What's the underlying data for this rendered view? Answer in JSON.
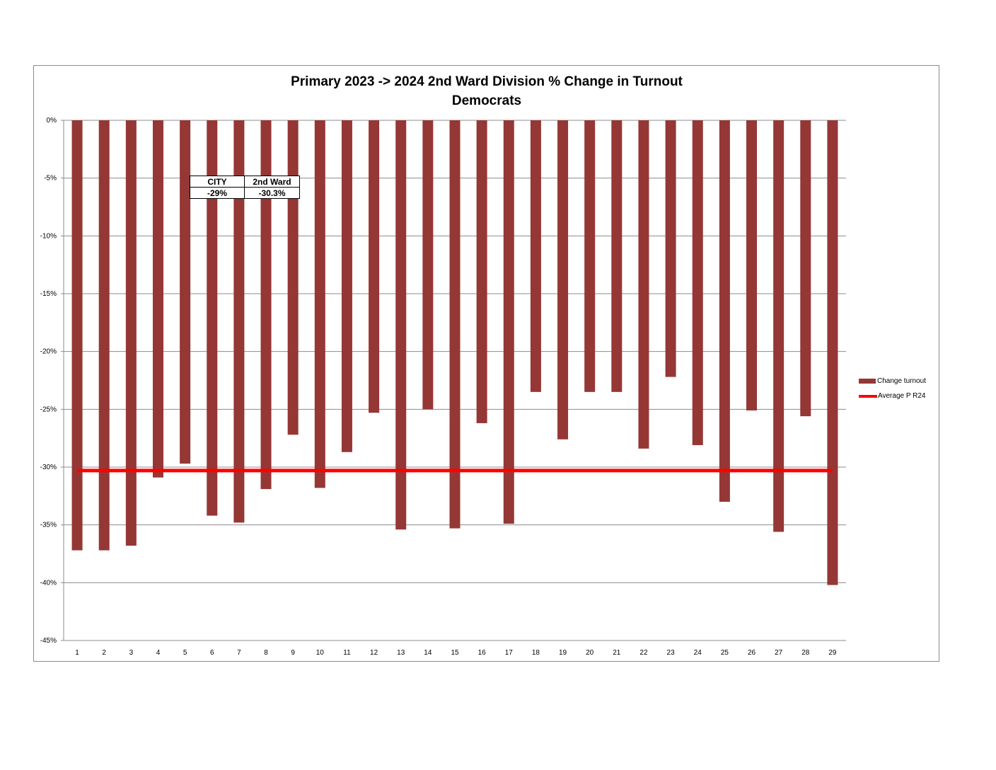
{
  "chart_data": {
    "type": "bar",
    "title": "Primary 2023 -> 2024 2nd Ward Division % Change in Turnout",
    "subtitle": "Democrats",
    "categories": [
      "1",
      "2",
      "3",
      "4",
      "5",
      "6",
      "7",
      "8",
      "9",
      "10",
      "11",
      "12",
      "13",
      "14",
      "15",
      "16",
      "17",
      "18",
      "19",
      "20",
      "21",
      "22",
      "23",
      "24",
      "25",
      "26",
      "27",
      "28",
      "29"
    ],
    "series": [
      {
        "name": "Change turnout",
        "type": "bar",
        "color": "#953735",
        "values": [
          -37.2,
          -37.2,
          -36.8,
          -30.9,
          -29.7,
          -34.2,
          -34.8,
          -31.9,
          -27.2,
          -31.8,
          -28.7,
          -25.3,
          -35.4,
          -25.0,
          -35.3,
          -26.2,
          -34.9,
          -23.5,
          -27.6,
          -23.5,
          -23.5,
          -28.4,
          -22.2,
          -28.1,
          -33.0,
          -25.1,
          -35.6,
          -25.6,
          -40.2
        ]
      },
      {
        "name": "Average P R24",
        "type": "line",
        "color": "#ff0000",
        "values": [
          -30.3,
          -30.3,
          -30.3,
          -30.3,
          -30.3,
          -30.3,
          -30.3,
          -30.3,
          -30.3,
          -30.3,
          -30.3,
          -30.3,
          -30.3,
          -30.3,
          -30.3,
          -30.3,
          -30.3,
          -30.3,
          -30.3,
          -30.3,
          -30.3,
          -30.3,
          -30.3,
          -30.3,
          -30.3,
          -30.3,
          -30.3,
          -30.3,
          -30.3
        ]
      }
    ],
    "ylim": [
      -45,
      0
    ],
    "yticks": [
      0,
      -5,
      -10,
      -15,
      -20,
      -25,
      -30,
      -35,
      -40,
      -45
    ],
    "ytick_labels": [
      "0%",
      "-5%",
      "-10%",
      "-15%",
      "-20%",
      "-25%",
      "-30%",
      "-35%",
      "-40%",
      "-45%"
    ],
    "grid": true,
    "legend_position": "right"
  },
  "info_table": {
    "headers": [
      "CITY",
      "2nd Ward"
    ],
    "values": [
      "-29%",
      "-30.3%"
    ]
  }
}
